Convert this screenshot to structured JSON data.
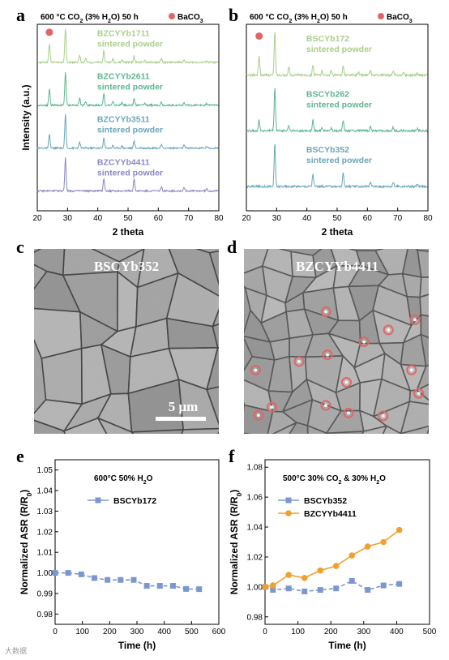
{
  "figure_labels": {
    "a": "a",
    "b": "b",
    "c": "c",
    "d": "d",
    "e": "e",
    "f": "f"
  },
  "watermark": "大数据",
  "chart_data": [
    {
      "id": "a",
      "type": "line",
      "title_parts": {
        "pre": "600 °C CO",
        "sub1": "2",
        "mid": " (3% H",
        "sub2": "2",
        "post": "O) 50 h"
      },
      "legend_marker": {
        "label": "BaCO",
        "sub": "3",
        "color": "#e06666"
      },
      "xlabel": "2 theta",
      "ylabel": "Intensity (a.u.)",
      "xlim": [
        20,
        80
      ],
      "xticks": [
        20,
        30,
        40,
        50,
        60,
        70,
        80
      ],
      "baco3_marks": [
        {
          "trace": 0,
          "x": 24.0
        }
      ],
      "series": [
        {
          "label1": "BZCYYb1711",
          "label2": "sintered powder",
          "color": "#a8cf8a",
          "level": 0,
          "peaks": [
            [
              24.0,
              0.55
            ],
            [
              29.3,
              1.0
            ],
            [
              34.0,
              0.22
            ],
            [
              36.0,
              0.12
            ],
            [
              42.0,
              0.35
            ],
            [
              45.0,
              0.1
            ],
            [
              48.0,
              0.08
            ],
            [
              52.0,
              0.18
            ],
            [
              55.5,
              0.06
            ],
            [
              61.0,
              0.1
            ],
            [
              68.5,
              0.08
            ],
            [
              76.0,
              0.05
            ]
          ]
        },
        {
          "label1": "BZCYYb2611",
          "label2": "sintered powder",
          "color": "#5fb591",
          "level": 1,
          "peaks": [
            [
              24.0,
              0.5
            ],
            [
              29.3,
              1.0
            ],
            [
              34.0,
              0.22
            ],
            [
              36.0,
              0.1
            ],
            [
              42.0,
              0.35
            ],
            [
              45.0,
              0.1
            ],
            [
              48.0,
              0.08
            ],
            [
              52.0,
              0.2
            ],
            [
              55.5,
              0.06
            ],
            [
              61.0,
              0.1
            ],
            [
              68.5,
              0.08
            ],
            [
              76.0,
              0.05
            ]
          ]
        },
        {
          "label1": "BZCYYb3511",
          "label2": "sintered powder",
          "color": "#6aa6b8",
          "level": 2,
          "peaks": [
            [
              24.0,
              0.4
            ],
            [
              29.3,
              1.0
            ],
            [
              34.0,
              0.18
            ],
            [
              42.0,
              0.3
            ],
            [
              45.0,
              0.08
            ],
            [
              48.0,
              0.06
            ],
            [
              52.0,
              0.22
            ],
            [
              61.0,
              0.1
            ],
            [
              68.5,
              0.08
            ],
            [
              76.0,
              0.05
            ]
          ]
        },
        {
          "label1": "BZCYYb4411",
          "label2": "sintered powder",
          "color": "#8b87c4",
          "level": 3,
          "peaks": [
            [
              29.3,
              1.0
            ],
            [
              42.0,
              0.38
            ],
            [
              52.0,
              0.35
            ],
            [
              61.0,
              0.12
            ],
            [
              68.5,
              0.12
            ],
            [
              76.0,
              0.06
            ]
          ]
        }
      ]
    },
    {
      "id": "b",
      "type": "line",
      "title_parts": {
        "pre": "600 °C CO",
        "sub1": "2",
        "mid": " (3% H",
        "sub2": "2",
        "post": "O) 50 h"
      },
      "legend_marker": {
        "label": "BaCO",
        "sub": "3",
        "color": "#e06666"
      },
      "xlabel": "2 theta",
      "ylabel": "",
      "xlim": [
        20,
        80
      ],
      "xticks": [
        20,
        30,
        40,
        50,
        60,
        70,
        80
      ],
      "baco3_marks": [
        {
          "trace": 0,
          "x": 24.2
        }
      ],
      "series": [
        {
          "label1": "BSCYb172",
          "label2": "sintered powder",
          "color": "#a8cf8a",
          "level": 0,
          "peaks": [
            [
              24.2,
              0.45
            ],
            [
              29.4,
              1.0
            ],
            [
              34.0,
              0.18
            ],
            [
              42.0,
              0.25
            ],
            [
              45.0,
              0.1
            ],
            [
              48.0,
              0.1
            ],
            [
              52.0,
              0.22
            ],
            [
              57.0,
              0.08
            ],
            [
              61.0,
              0.1
            ],
            [
              68.5,
              0.08
            ],
            [
              72.0,
              0.06
            ],
            [
              76.5,
              0.05
            ]
          ]
        },
        {
          "label1": "BSCYb262",
          "label2": "sintered powder",
          "color": "#5fb591",
          "level": 1,
          "peaks": [
            [
              24.2,
              0.25
            ],
            [
              29.4,
              1.0
            ],
            [
              34.0,
              0.12
            ],
            [
              42.0,
              0.25
            ],
            [
              45.0,
              0.06
            ],
            [
              48.0,
              0.06
            ],
            [
              52.0,
              0.25
            ],
            [
              61.0,
              0.1
            ],
            [
              68.5,
              0.08
            ],
            [
              76.5,
              0.05
            ]
          ]
        },
        {
          "label1": "BSCYb352",
          "label2": "sintered powder",
          "color": "#6aa6b8",
          "level": 2,
          "peaks": [
            [
              29.4,
              1.0
            ],
            [
              42.0,
              0.3
            ],
            [
              52.0,
              0.32
            ],
            [
              61.0,
              0.1
            ],
            [
              68.5,
              0.1
            ],
            [
              76.5,
              0.05
            ]
          ]
        }
      ]
    },
    {
      "id": "e",
      "type": "line",
      "title_parts": {
        "pre": "600°C 50% H",
        "sub": "2",
        "post": "O"
      },
      "xlabel": "Time (h)",
      "ylabel_parts": {
        "pre": "Normalized ASR (R/R",
        "sub": "0",
        "post": ")"
      },
      "xlim": [
        0,
        600
      ],
      "ylim": [
        0.975,
        1.055
      ],
      "xticks": [
        0,
        100,
        200,
        300,
        400,
        500,
        600
      ],
      "yticks": [
        "0.98",
        "0.99",
        "1.00",
        "1.01",
        "1.02",
        "1.03",
        "1.04",
        "1.05"
      ],
      "series": [
        {
          "name": "BSCYb172",
          "color": "#7a98cf",
          "marker": "square",
          "x": [
            0,
            48,
            96,
            144,
            192,
            240,
            288,
            336,
            384,
            432,
            480,
            528
          ],
          "y": [
            1.0,
            1.0,
            0.9993,
            0.9975,
            0.9966,
            0.9966,
            0.9966,
            0.9937,
            0.9937,
            0.9937,
            0.9922,
            0.9921
          ]
        }
      ]
    },
    {
      "id": "f",
      "type": "line",
      "title_parts": {
        "pre": "500°C 30% CO",
        "sub1": "2",
        "mid": " & 30% H",
        "sub2": "2",
        "post": "O"
      },
      "xlabel": "Time (h)",
      "ylabel_parts": {
        "pre": "Normalized ASR (R/R",
        "sub": "0",
        "post": ")"
      },
      "xlim": [
        0,
        500
      ],
      "ylim": [
        0.975,
        1.085
      ],
      "xticks": [
        0,
        100,
        200,
        300,
        400,
        500
      ],
      "yticks": [
        "0.98",
        "1.00",
        "1.02",
        "1.04",
        "1.06",
        "1.08"
      ],
      "series": [
        {
          "name": "BSCYb352",
          "color": "#7a98cf",
          "marker": "square",
          "x": [
            0,
            24,
            72,
            120,
            168,
            216,
            264,
            312,
            360,
            408
          ],
          "y": [
            1.0,
            0.998,
            0.999,
            0.997,
            0.998,
            0.999,
            1.004,
            0.998,
            1.001,
            1.002
          ]
        },
        {
          "name": "BZCYYb4411",
          "color": "#f0a030",
          "marker": "circle",
          "x": [
            0,
            24,
            72,
            120,
            168,
            216,
            264,
            312,
            360,
            408
          ],
          "y": [
            1.0,
            1.001,
            1.008,
            1.006,
            1.011,
            1.014,
            1.021,
            1.027,
            1.03,
            1.038
          ]
        }
      ]
    }
  ],
  "micrographs": [
    {
      "id": "c",
      "label": "BSCYb352",
      "scale": "5 μm",
      "tone": "#9a9a9a"
    },
    {
      "id": "d",
      "label": "BZCYYb4411",
      "tone": "#8e8e8e",
      "marker_color": "#e06666",
      "marker_count": 15
    }
  ]
}
